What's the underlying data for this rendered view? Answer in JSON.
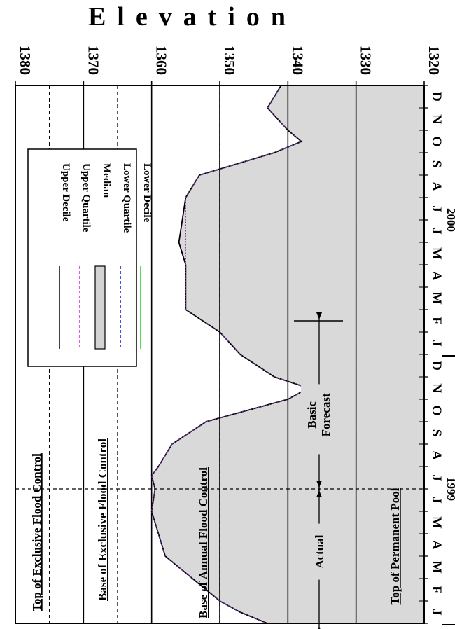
{
  "chart_data": {
    "type": "area",
    "title": "Elevation",
    "elevation_ticks": [
      "1380",
      "1370",
      "1360",
      "1350",
      "1340",
      "1330",
      "1320"
    ],
    "elevation_range": [
      1320,
      1380
    ],
    "months": [
      "J",
      "F",
      "M",
      "A",
      "M",
      "J",
      "J",
      "A",
      "S",
      "O",
      "N",
      "D",
      "J",
      "F",
      "M",
      "A",
      "M",
      "J",
      "J",
      "A",
      "S",
      "O",
      "N",
      "D"
    ],
    "years": [
      "1999",
      "2000"
    ],
    "legend": [
      {
        "label": "Upper Decile",
        "color": "#000000",
        "style": "solid"
      },
      {
        "label": "Upper Quartile",
        "color": "#e020e0",
        "style": "dashed"
      },
      {
        "label": "Median",
        "color": "#d3d3d3",
        "style": "box"
      },
      {
        "label": "Lower Quartile",
        "color": "#1010e0",
        "style": "dashed"
      },
      {
        "label": "Lower Decile",
        "color": "#20d020",
        "style": "solid"
      }
    ],
    "reference_lines": [
      {
        "label": "Top of Exclusive Flood Control",
        "elevation": 1375
      },
      {
        "label": "Base of Exclusive Flood Control",
        "elevation": 1365
      },
      {
        "label": "Base of Annual Flood Control",
        "elevation": 1350
      },
      {
        "label": "Top of Permanent Pool",
        "elevation": 1330
      }
    ],
    "annotations": {
      "actual": "Actual",
      "forecast_line1": "Basic",
      "forecast_line2": "Forecast"
    },
    "series": [
      {
        "x": [
          0.0,
          0.5,
          1.0,
          2.0,
          3.0,
          4.0,
          5.0,
          6.0,
          6.6,
          7.0,
          8.0,
          9.0,
          10.0,
          10.5,
          11.0,
          12.0,
          13.0,
          14.0,
          15.0,
          16.0,
          16.5,
          17.0,
          18.0,
          19.0,
          20.0,
          21.0,
          21.5,
          22.0,
          23.0,
          24.0
        ],
        "upper": [
          1343,
          1347,
          1350,
          1354,
          1358,
          1359,
          1360,
          1359.5,
          1360,
          1359,
          1357,
          1352,
          1340,
          1337,
          1342,
          1347,
          1350,
          1355,
          1355,
          1355,
          1355.5,
          1356,
          1355.5,
          1355,
          1353,
          1342,
          1338,
          1340,
          1343,
          1341
        ],
        "median": [
          1343,
          1347,
          1350,
          1354,
          1358,
          1359,
          1360,
          1359.5,
          1360,
          1359,
          1357,
          1352,
          1340,
          1337,
          1342,
          1347,
          1350,
          1355,
          1355,
          1355,
          1355,
          1355,
          1355,
          1355,
          1353,
          1342,
          1338,
          1340,
          1343,
          1341
        ],
        "lower": [
          1343,
          1347,
          1350,
          1354,
          1358,
          1359,
          1360,
          1359.5,
          1360,
          1359,
          1357,
          1352,
          1340,
          1337,
          1342,
          1347,
          1350,
          1355,
          1355,
          1355,
          1355,
          1355,
          1355,
          1355,
          1353,
          1342,
          1338,
          1340,
          1343,
          1341
        ]
      }
    ],
    "grid": true,
    "legend_position": "top-left"
  }
}
